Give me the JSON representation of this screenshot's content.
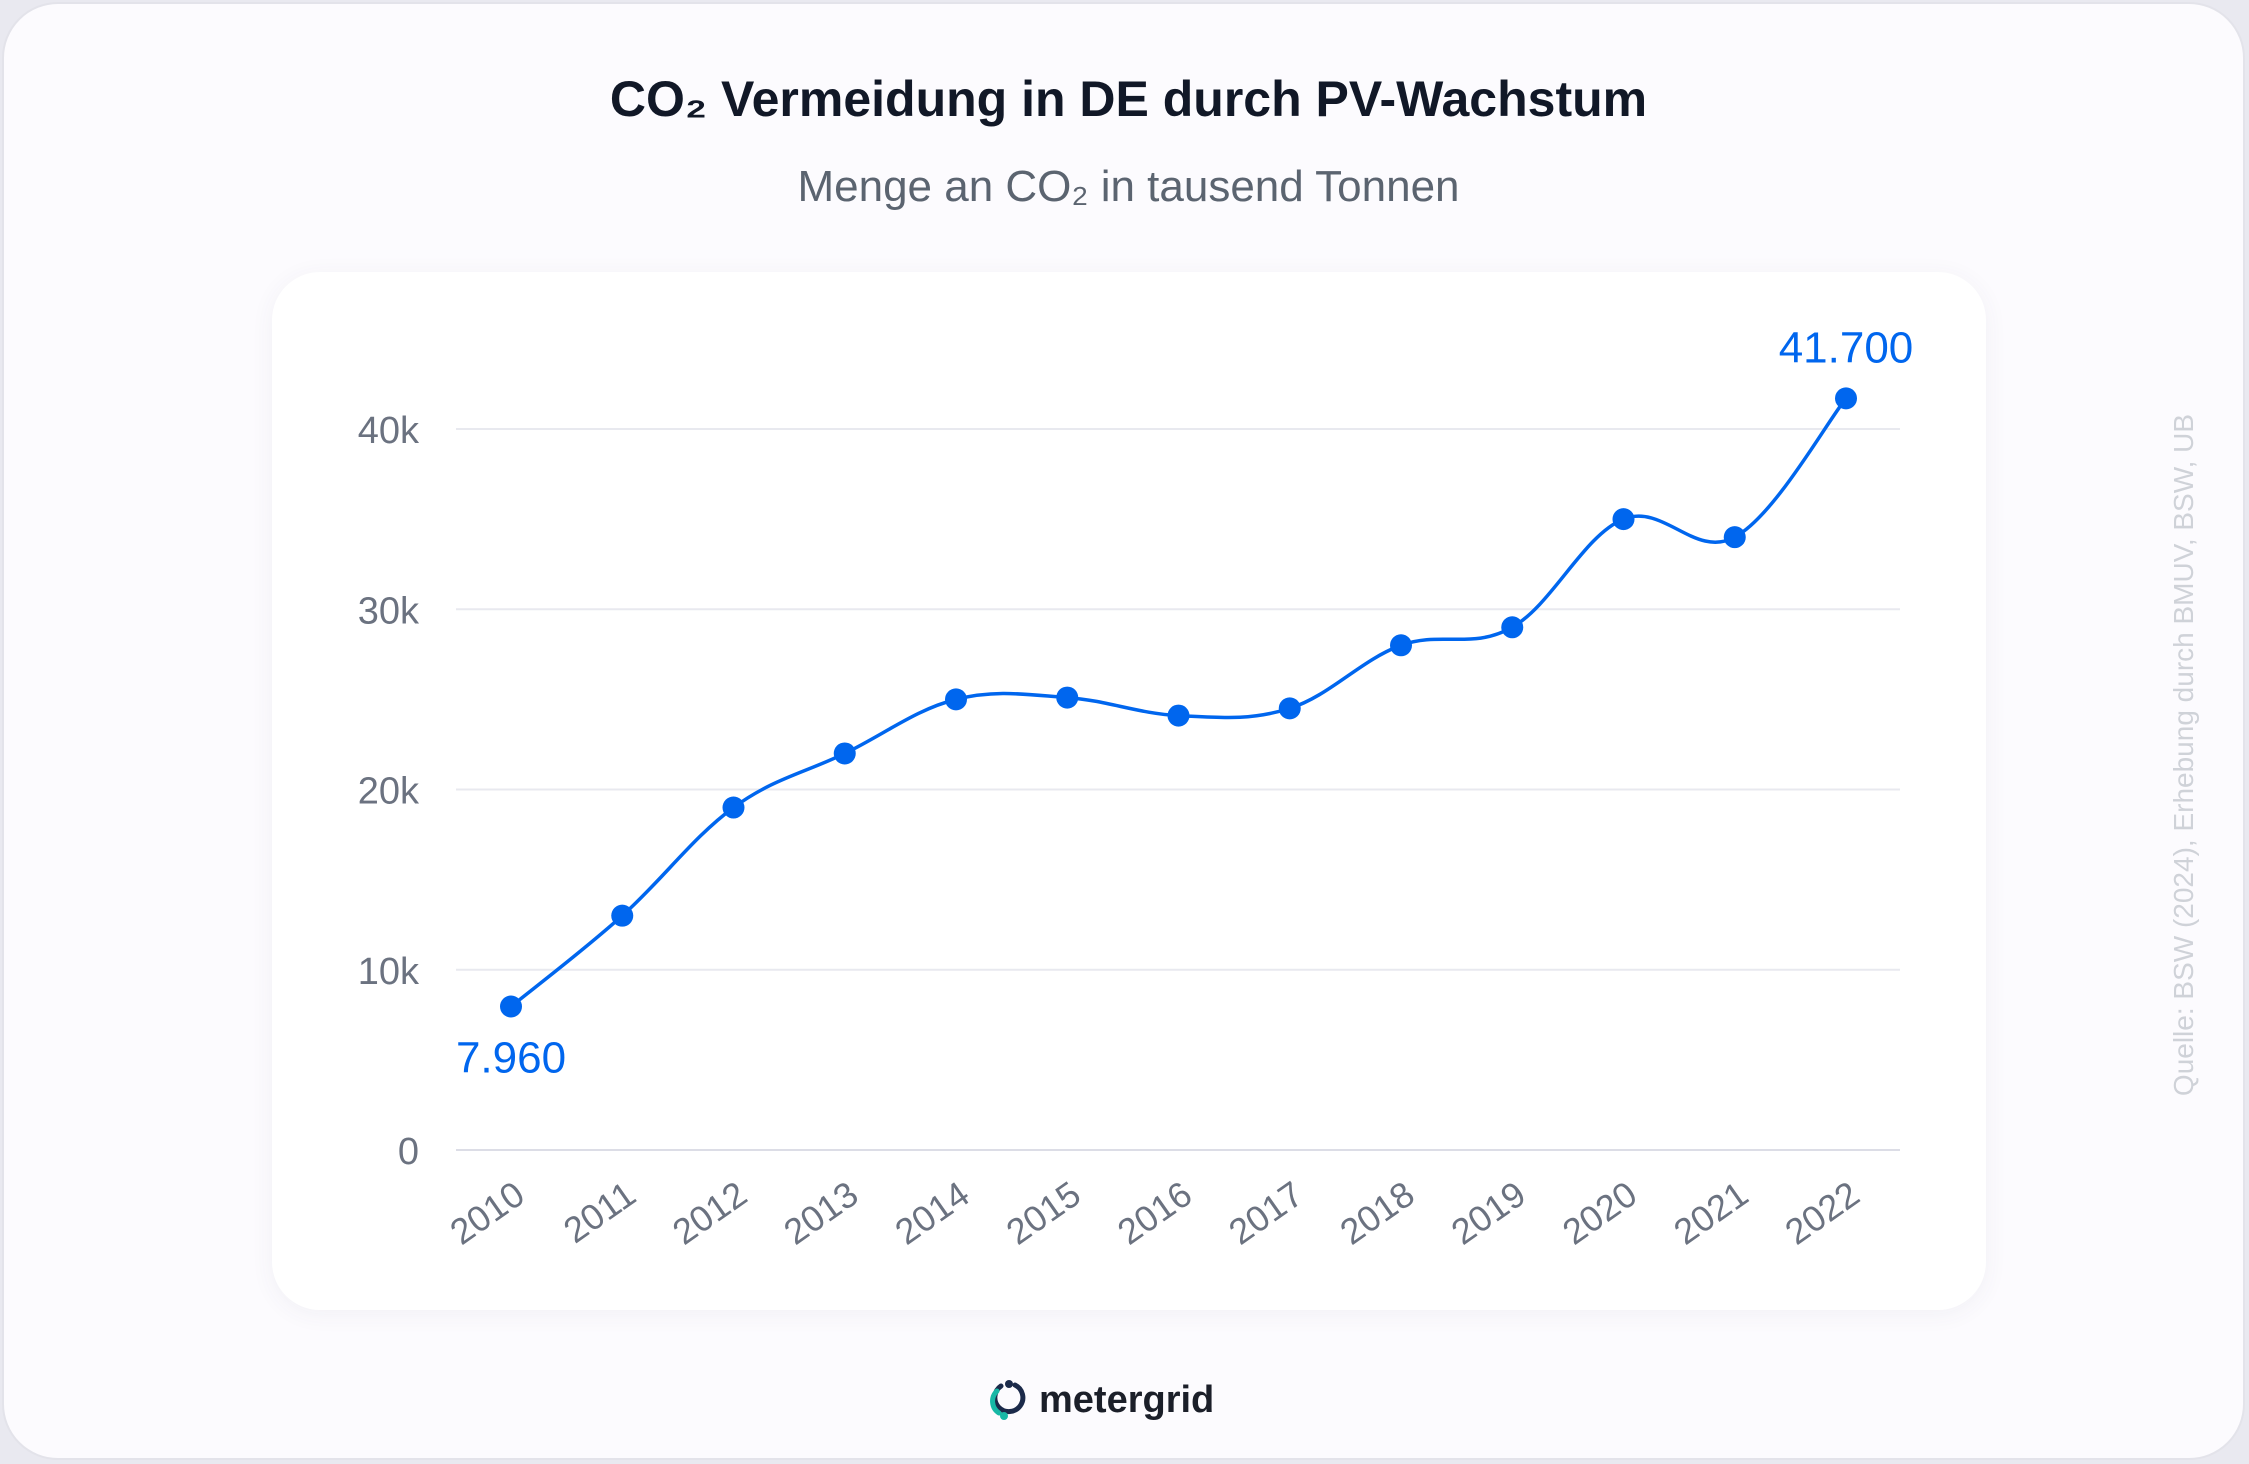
{
  "brand": "metergrid",
  "source_note": "Quelle: BSW (2024), Erhebung durch BMUV, BSW, UB",
  "colors": {
    "accent": "#0066ee",
    "grid": "#e8e9ef",
    "axis_text": "#6b7280",
    "title": "#111827",
    "subtitle": "#5b6470"
  },
  "chart_data": {
    "type": "line",
    "title": "CO₂ Vermeidung in DE durch PV-Wachstum",
    "subtitle": "Menge an CO₂ in tausend Tonnen",
    "xlabel": "",
    "ylabel": "",
    "categories": [
      "2010",
      "2011",
      "2012",
      "2013",
      "2014",
      "2015",
      "2016",
      "2017",
      "2018",
      "2019",
      "2020",
      "2021",
      "2022"
    ],
    "values": [
      7960,
      13000,
      19000,
      22000,
      25000,
      25100,
      24100,
      24500,
      28000,
      29000,
      35000,
      34000,
      41700
    ],
    "ylim": [
      0,
      40000
    ],
    "yticks": [
      0,
      10000,
      20000,
      30000,
      40000
    ],
    "ytick_labels": [
      "0",
      "10k",
      "20k",
      "30k",
      "40k"
    ],
    "data_labels": [
      {
        "index": 0,
        "text": "7.960",
        "position": "below"
      },
      {
        "index": 12,
        "text": "41.700",
        "position": "above"
      }
    ],
    "grid": true,
    "legend": "none"
  }
}
